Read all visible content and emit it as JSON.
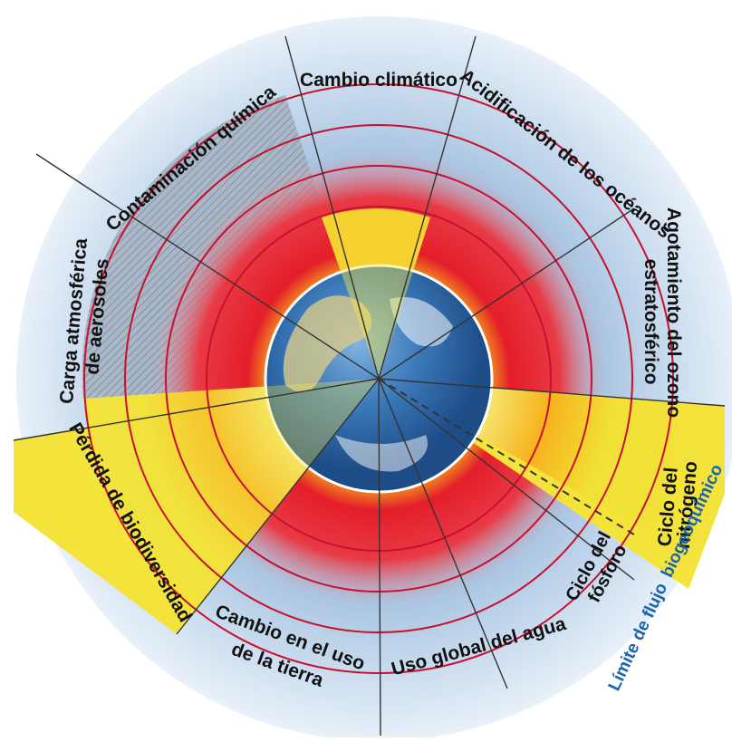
{
  "diagram": {
    "labels": {
      "cambio_climatico": "Cambio climático",
      "acidificacion": "Acidificación de los océanos",
      "ozono_1": "Agotamiento del ozono",
      "ozono_2": "estratosférico",
      "nitrogeno_1": "Ciclo del",
      "nitrogeno_2": "nitrógeno",
      "flujo_1": "Límite de flujo",
      "flujo_2": "biogeoquímico",
      "fosforo_1": "Ciclo del",
      "fosforo_2": "fósforo",
      "agua": "Uso global del agua",
      "tierra_1": "Cambio en el uso",
      "tierra_2": "de la tierra",
      "biodiversidad": "Pérdida de biodiversidad",
      "aerosoles_1": "Carga atmosférica",
      "aerosoles_2": "de aerosoles",
      "quimica": "Contaminación química"
    },
    "colors": {
      "safe_zone": "#f2e43c",
      "overshoot": "#e41e2a",
      "orange": "#f7a21a",
      "background": "#a9c6e3",
      "ring": "#c8102e",
      "boundary_label": "#1a64b0",
      "earth": "#2f6fb0"
    }
  }
}
